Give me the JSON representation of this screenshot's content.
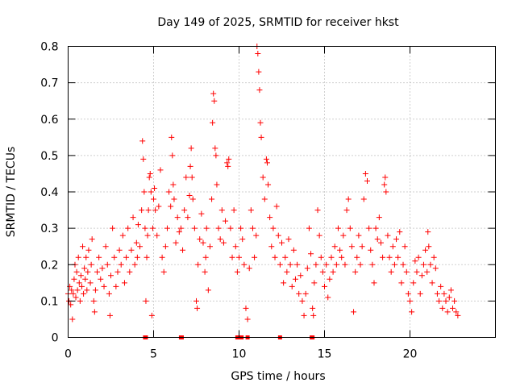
{
  "chart_data": {
    "type": "scatter",
    "title": "Day 149 of 2025, SRMTID for receiver hkst",
    "xlabel": "GPS time / hours",
    "ylabel": "SRMTID / TECUs",
    "xlim": [
      0,
      25
    ],
    "ylim": [
      0,
      0.8
    ],
    "grid": true,
    "marker": "+",
    "color": "#ff0000",
    "x_ticks": [
      0,
      5,
      10,
      15,
      20
    ],
    "x_tick_labels": [
      "0",
      "5",
      "10",
      "15",
      "20"
    ],
    "y_ticks": [
      0,
      0.1,
      0.2,
      0.3,
      0.4,
      0.5,
      0.6,
      0.7,
      0.8
    ],
    "y_tick_labels": [
      "0",
      "0.1",
      "0.2",
      "0.3",
      "0.4",
      "0.5",
      "0.6",
      "0.7",
      "0.8"
    ],
    "series": [
      {
        "name": "SRMTID",
        "points": [
          [
            0.0,
            0.12
          ],
          [
            0.05,
            0.1
          ],
          [
            0.1,
            0.14
          ],
          [
            0.15,
            0.09
          ],
          [
            0.2,
            0.13
          ],
          [
            0.25,
            0.05
          ],
          [
            0.3,
            0.12
          ],
          [
            0.35,
            0.16
          ],
          [
            0.4,
            0.2
          ],
          [
            0.45,
            0.11
          ],
          [
            0.5,
            0.18
          ],
          [
            0.55,
            0.13
          ],
          [
            0.6,
            0.22
          ],
          [
            0.65,
            0.15
          ],
          [
            0.7,
            0.1
          ],
          [
            0.75,
            0.17
          ],
          [
            0.8,
            0.14
          ],
          [
            0.85,
            0.25
          ],
          [
            0.9,
            0.12
          ],
          [
            0.95,
            0.19
          ],
          [
            1.0,
            0.16
          ],
          [
            1.05,
            0.22
          ],
          [
            1.1,
            0.13
          ],
          [
            1.15,
            0.18
          ],
          [
            1.2,
            0.24
          ],
          [
            1.3,
            0.15
          ],
          [
            1.35,
            0.2
          ],
          [
            1.4,
            0.27
          ],
          [
            1.5,
            0.1
          ],
          [
            1.55,
            0.07
          ],
          [
            1.6,
            0.13
          ],
          [
            1.7,
            0.18
          ],
          [
            1.8,
            0.22
          ],
          [
            1.9,
            0.16
          ],
          [
            2.0,
            0.19
          ],
          [
            2.1,
            0.14
          ],
          [
            2.2,
            0.25
          ],
          [
            2.3,
            0.2
          ],
          [
            2.4,
            0.12
          ],
          [
            2.45,
            0.06
          ],
          [
            2.5,
            0.17
          ],
          [
            2.6,
            0.3
          ],
          [
            2.7,
            0.22
          ],
          [
            2.8,
            0.14
          ],
          [
            2.9,
            0.18
          ],
          [
            3.0,
            0.24
          ],
          [
            3.1,
            0.2
          ],
          [
            3.2,
            0.28
          ],
          [
            3.3,
            0.15
          ],
          [
            3.4,
            0.22
          ],
          [
            3.5,
            0.3
          ],
          [
            3.6,
            0.18
          ],
          [
            3.7,
            0.24
          ],
          [
            3.8,
            0.33
          ],
          [
            3.9,
            0.2
          ],
          [
            4.0,
            0.26
          ],
          [
            4.05,
            0.22
          ],
          [
            4.1,
            0.31
          ],
          [
            4.2,
            0.25
          ],
          [
            4.3,
            0.35
          ],
          [
            4.35,
            0.54
          ],
          [
            4.4,
            0.49
          ],
          [
            4.45,
            0.4
          ],
          [
            4.5,
            0.3
          ],
          [
            4.55,
            0.1
          ],
          [
            4.6,
            0.22
          ],
          [
            4.65,
            0.28
          ],
          [
            4.7,
            0.35
          ],
          [
            4.75,
            0.44
          ],
          [
            4.8,
            0.45
          ],
          [
            4.85,
            0.4
          ],
          [
            4.9,
            0.06
          ],
          [
            4.95,
            0.3
          ],
          [
            5.0,
            0.38
          ],
          [
            5.05,
            0.41
          ],
          [
            5.1,
            0.35
          ],
          [
            5.2,
            0.28
          ],
          [
            5.3,
            0.36
          ],
          [
            5.4,
            0.46
          ],
          [
            5.5,
            0.22
          ],
          [
            5.6,
            0.18
          ],
          [
            5.7,
            0.25
          ],
          [
            5.8,
            0.3
          ],
          [
            5.9,
            0.4
          ],
          [
            6.0,
            0.36
          ],
          [
            6.05,
            0.55
          ],
          [
            6.1,
            0.5
          ],
          [
            6.15,
            0.42
          ],
          [
            6.2,
            0.38
          ],
          [
            6.3,
            0.26
          ],
          [
            6.4,
            0.33
          ],
          [
            6.5,
            0.29
          ],
          [
            6.6,
            0.3
          ],
          [
            6.7,
            0.24
          ],
          [
            6.8,
            0.35
          ],
          [
            6.9,
            0.44
          ],
          [
            7.0,
            0.33
          ],
          [
            7.1,
            0.39
          ],
          [
            7.15,
            0.47
          ],
          [
            7.2,
            0.52
          ],
          [
            7.25,
            0.44
          ],
          [
            7.3,
            0.38
          ],
          [
            7.4,
            0.3
          ],
          [
            7.5,
            0.1
          ],
          [
            7.55,
            0.08
          ],
          [
            7.6,
            0.2
          ],
          [
            7.7,
            0.27
          ],
          [
            7.8,
            0.34
          ],
          [
            7.9,
            0.26
          ],
          [
            8.0,
            0.18
          ],
          [
            8.05,
            0.22
          ],
          [
            8.1,
            0.3
          ],
          [
            8.2,
            0.13
          ],
          [
            8.3,
            0.25
          ],
          [
            8.4,
            0.38
          ],
          [
            8.45,
            0.59
          ],
          [
            8.5,
            0.67
          ],
          [
            8.55,
            0.65
          ],
          [
            8.6,
            0.52
          ],
          [
            8.65,
            0.5
          ],
          [
            8.7,
            0.42
          ],
          [
            8.8,
            0.3
          ],
          [
            8.9,
            0.27
          ],
          [
            9.0,
            0.35
          ],
          [
            9.1,
            0.26
          ],
          [
            9.2,
            0.32
          ],
          [
            9.3,
            0.48
          ],
          [
            9.35,
            0.47
          ],
          [
            9.4,
            0.49
          ],
          [
            9.5,
            0.3
          ],
          [
            9.6,
            0.22
          ],
          [
            9.7,
            0.35
          ],
          [
            9.8,
            0.25
          ],
          [
            9.9,
            0.18
          ],
          [
            10.0,
            0.22
          ],
          [
            10.1,
            0.3
          ],
          [
            10.2,
            0.27
          ],
          [
            10.3,
            0.2
          ],
          [
            10.4,
            0.08
          ],
          [
            10.5,
            0.05
          ],
          [
            10.6,
            0.19
          ],
          [
            10.7,
            0.35
          ],
          [
            10.8,
            0.3
          ],
          [
            10.9,
            0.22
          ],
          [
            11.0,
            0.28
          ],
          [
            11.05,
            0.8
          ],
          [
            11.1,
            0.78
          ],
          [
            11.15,
            0.73
          ],
          [
            11.2,
            0.68
          ],
          [
            11.25,
            0.59
          ],
          [
            11.3,
            0.55
          ],
          [
            11.4,
            0.44
          ],
          [
            11.5,
            0.38
          ],
          [
            11.6,
            0.49
          ],
          [
            11.65,
            0.48
          ],
          [
            11.7,
            0.42
          ],
          [
            11.8,
            0.33
          ],
          [
            11.9,
            0.25
          ],
          [
            12.0,
            0.3
          ],
          [
            12.1,
            0.22
          ],
          [
            12.2,
            0.36
          ],
          [
            12.3,
            0.28
          ],
          [
            12.4,
            0.2
          ],
          [
            12.5,
            0.26
          ],
          [
            12.6,
            0.15
          ],
          [
            12.7,
            0.22
          ],
          [
            12.8,
            0.18
          ],
          [
            12.9,
            0.27
          ],
          [
            13.0,
            0.2
          ],
          [
            13.1,
            0.14
          ],
          [
            13.2,
            0.24
          ],
          [
            13.3,
            0.16
          ],
          [
            13.4,
            0.2
          ],
          [
            13.5,
            0.12
          ],
          [
            13.6,
            0.17
          ],
          [
            13.7,
            0.1
          ],
          [
            13.8,
            0.06
          ],
          [
            13.9,
            0.12
          ],
          [
            14.0,
            0.19
          ],
          [
            14.1,
            0.3
          ],
          [
            14.2,
            0.23
          ],
          [
            14.3,
            0.08
          ],
          [
            14.35,
            0.06
          ],
          [
            14.4,
            0.15
          ],
          [
            14.5,
            0.2
          ],
          [
            14.6,
            0.35
          ],
          [
            14.7,
            0.28
          ],
          [
            14.8,
            0.22
          ],
          [
            14.9,
            0.18
          ],
          [
            15.0,
            0.14
          ],
          [
            15.1,
            0.2
          ],
          [
            15.2,
            0.11
          ],
          [
            15.3,
            0.16
          ],
          [
            15.4,
            0.22
          ],
          [
            15.5,
            0.18
          ],
          [
            15.6,
            0.25
          ],
          [
            15.7,
            0.2
          ],
          [
            15.8,
            0.3
          ],
          [
            15.9,
            0.24
          ],
          [
            16.0,
            0.22
          ],
          [
            16.1,
            0.28
          ],
          [
            16.2,
            0.2
          ],
          [
            16.3,
            0.35
          ],
          [
            16.4,
            0.38
          ],
          [
            16.5,
            0.3
          ],
          [
            16.6,
            0.25
          ],
          [
            16.7,
            0.07
          ],
          [
            16.8,
            0.18
          ],
          [
            16.9,
            0.22
          ],
          [
            17.0,
            0.28
          ],
          [
            17.1,
            0.2
          ],
          [
            17.2,
            0.25
          ],
          [
            17.3,
            0.38
          ],
          [
            17.4,
            0.45
          ],
          [
            17.5,
            0.43
          ],
          [
            17.6,
            0.3
          ],
          [
            17.7,
            0.24
          ],
          [
            17.8,
            0.2
          ],
          [
            17.9,
            0.15
          ],
          [
            18.0,
            0.3
          ],
          [
            18.1,
            0.27
          ],
          [
            18.2,
            0.33
          ],
          [
            18.3,
            0.26
          ],
          [
            18.4,
            0.22
          ],
          [
            18.5,
            0.42
          ],
          [
            18.55,
            0.44
          ],
          [
            18.6,
            0.4
          ],
          [
            18.7,
            0.28
          ],
          [
            18.8,
            0.22
          ],
          [
            18.9,
            0.18
          ],
          [
            19.0,
            0.25
          ],
          [
            19.1,
            0.2
          ],
          [
            19.2,
            0.27
          ],
          [
            19.3,
            0.22
          ],
          [
            19.4,
            0.29
          ],
          [
            19.5,
            0.15
          ],
          [
            19.6,
            0.2
          ],
          [
            19.7,
            0.25
          ],
          [
            19.8,
            0.18
          ],
          [
            19.9,
            0.12
          ],
          [
            20.0,
            0.1
          ],
          [
            20.1,
            0.07
          ],
          [
            20.2,
            0.15
          ],
          [
            20.3,
            0.21
          ],
          [
            20.4,
            0.18
          ],
          [
            20.5,
            0.22
          ],
          [
            20.6,
            0.12
          ],
          [
            20.7,
            0.17
          ],
          [
            20.8,
            0.2
          ],
          [
            20.9,
            0.24
          ],
          [
            21.0,
            0.18
          ],
          [
            21.05,
            0.29
          ],
          [
            21.1,
            0.25
          ],
          [
            21.2,
            0.2
          ],
          [
            21.3,
            0.15
          ],
          [
            21.4,
            0.22
          ],
          [
            21.5,
            0.19
          ],
          [
            21.6,
            0.12
          ],
          [
            21.7,
            0.1
          ],
          [
            21.8,
            0.14
          ],
          [
            21.9,
            0.08
          ],
          [
            22.0,
            0.12
          ],
          [
            22.1,
            0.1
          ],
          [
            22.2,
            0.07
          ],
          [
            22.3,
            0.11
          ],
          [
            22.4,
            0.13
          ],
          [
            22.5,
            0.08
          ],
          [
            22.6,
            0.1
          ],
          [
            22.7,
            0.07
          ],
          [
            22.8,
            0.06
          ]
        ]
      },
      {
        "name": "zero-markers",
        "marker": "square",
        "points": [
          [
            4.5,
            0
          ],
          [
            4.55,
            0
          ],
          [
            6.6,
            0
          ],
          [
            6.65,
            0
          ],
          [
            9.9,
            0
          ],
          [
            10.0,
            0
          ],
          [
            10.05,
            0
          ],
          [
            10.15,
            0
          ],
          [
            10.5,
            0
          ],
          [
            12.4,
            0
          ],
          [
            14.25,
            0
          ],
          [
            14.3,
            0
          ]
        ]
      }
    ]
  }
}
